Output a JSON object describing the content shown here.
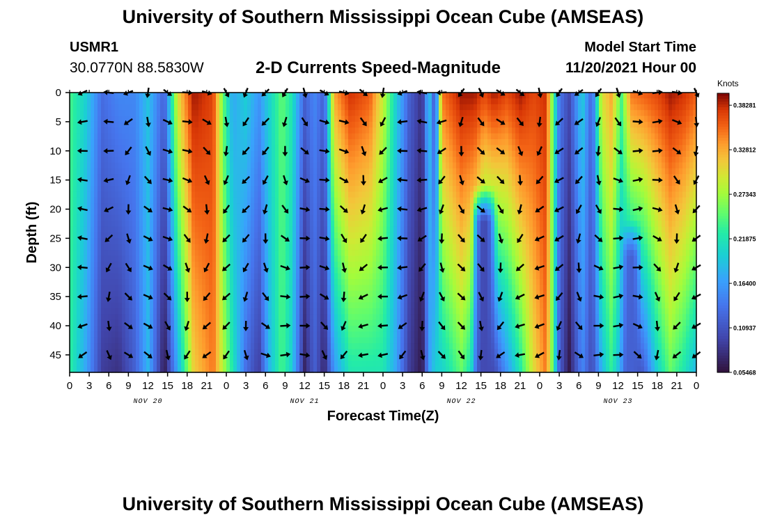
{
  "header": {
    "title": "University of Southern Mississippi Ocean Cube (AMSEAS)",
    "station_id": "USMR1",
    "station_coords": "30.0770N  88.5830W",
    "subtitle": "2-D Currents Speed-Magnitude",
    "model_start_label": "Model Start Time",
    "model_start_value": "11/20/2021 Hour 00"
  },
  "footer": {
    "repeated_title": "University of Southern Mississippi Ocean Cube (AMSEAS)"
  },
  "chart_data": {
    "type": "heatmap",
    "title": "2-D Currents Speed-Magnitude",
    "xlabel": "Forecast Time(Z)",
    "ylabel": "Depth (ft)",
    "x_hours": [
      0,
      96
    ],
    "ylim": [
      0,
      48
    ],
    "y_ticks": [
      0,
      5,
      10,
      15,
      20,
      25,
      30,
      35,
      40,
      45
    ],
    "x_tick_labels": [
      "0",
      "3",
      "6",
      "9",
      "12",
      "15",
      "18",
      "21",
      "0",
      "3",
      "6",
      "9",
      "12",
      "15",
      "18",
      "21",
      "0",
      "3",
      "6",
      "9",
      "12",
      "15",
      "18",
      "21",
      "0",
      "3",
      "6",
      "9",
      "12",
      "15",
      "18",
      "21",
      "0"
    ],
    "date_labels": [
      {
        "hour": 12,
        "label": "NOV 20"
      },
      {
        "hour": 36,
        "label": "NOV 21"
      },
      {
        "hour": 60,
        "label": "NOV 22"
      },
      {
        "hour": 84,
        "label": "NOV 23"
      }
    ],
    "colorbar": {
      "unit": "Knots",
      "ticks": [
        0.38281,
        0.32812,
        0.27343,
        0.21875,
        0.164,
        0.10937,
        0.05468
      ],
      "tick_labels": [
        "0.38281",
        "0.32812",
        "0.27343",
        "0.21875",
        "0.16400",
        "0.10937",
        "0.05468"
      ],
      "min": 0.05468,
      "max": 0.3975
    },
    "speed_profiles": [
      {
        "hour": 0,
        "surface": 0.24,
        "bottom": 0.23
      },
      {
        "hour": 2.5,
        "surface": 0.2,
        "bottom": 0.17
      },
      {
        "hour": 5,
        "surface": 0.13,
        "bottom": 0.09
      },
      {
        "hour": 7.5,
        "surface": 0.15,
        "bottom": 0.08
      },
      {
        "hour": 10,
        "surface": 0.15,
        "bottom": 0.12
      },
      {
        "hour": 12,
        "surface": 0.19,
        "bottom": 0.18
      },
      {
        "hour": 14.5,
        "surface": 0.12,
        "bottom": 0.06
      },
      {
        "hour": 16.5,
        "surface": 0.3,
        "bottom": 0.17
      },
      {
        "hour": 19,
        "surface": 0.39,
        "bottom": 0.31
      },
      {
        "hour": 22,
        "surface": 0.37,
        "bottom": 0.35
      },
      {
        "hour": 23.5,
        "surface": 0.25,
        "bottom": 0.28
      },
      {
        "hour": 25,
        "surface": 0.17,
        "bottom": 0.22
      },
      {
        "hour": 27,
        "surface": 0.2,
        "bottom": 0.13
      },
      {
        "hour": 29,
        "surface": 0.16,
        "bottom": 0.09
      },
      {
        "hour": 30.5,
        "surface": 0.2,
        "bottom": 0.18
      },
      {
        "hour": 32.5,
        "surface": 0.25,
        "bottom": 0.24
      },
      {
        "hour": 34,
        "surface": 0.22,
        "bottom": 0.2
      },
      {
        "hour": 36,
        "surface": 0.12,
        "bottom": 0.07
      },
      {
        "hour": 37.5,
        "surface": 0.15,
        "bottom": 0.12
      },
      {
        "hour": 39,
        "surface": 0.12,
        "bottom": 0.07
      },
      {
        "hour": 40.5,
        "surface": 0.33,
        "bottom": 0.16
      },
      {
        "hour": 43,
        "surface": 0.38,
        "bottom": 0.22
      },
      {
        "hour": 46,
        "surface": 0.36,
        "bottom": 0.22
      },
      {
        "hour": 48,
        "surface": 0.29,
        "bottom": 0.22
      },
      {
        "hour": 50,
        "surface": 0.2,
        "bottom": 0.17
      },
      {
        "hour": 52,
        "surface": 0.12,
        "bottom": 0.09
      },
      {
        "hour": 54,
        "surface": 0.08,
        "bottom": 0.06
      },
      {
        "hour": 55,
        "surface": 0.2,
        "bottom": 0.16
      },
      {
        "hour": 56,
        "surface": 0.1,
        "bottom": 0.2
      },
      {
        "hour": 57,
        "surface": 0.35,
        "bottom": 0.2
      },
      {
        "hour": 60,
        "surface": 0.39,
        "bottom": 0.25
      },
      {
        "hour": 62,
        "surface": 0.39,
        "bottom": 0.2
      },
      {
        "hour": 63.5,
        "surface": 0.37,
        "bottom": 0.12
      },
      {
        "hour": 65,
        "surface": 0.39,
        "bottom": 0.1
      },
      {
        "hour": 67,
        "surface": 0.37,
        "bottom": 0.16
      },
      {
        "hour": 69,
        "surface": 0.39,
        "bottom": 0.22
      },
      {
        "hour": 71,
        "surface": 0.37,
        "bottom": 0.3
      },
      {
        "hour": 73,
        "surface": 0.38,
        "bottom": 0.35
      },
      {
        "hour": 74,
        "surface": 0.25,
        "bottom": 0.25
      },
      {
        "hour": 75,
        "surface": 0.14,
        "bottom": 0.12
      },
      {
        "hour": 76.5,
        "surface": 0.1,
        "bottom": 0.06
      },
      {
        "hour": 78.5,
        "surface": 0.2,
        "bottom": 0.15
      },
      {
        "hour": 80,
        "surface": 0.12,
        "bottom": 0.1
      },
      {
        "hour": 81.5,
        "surface": 0.3,
        "bottom": 0.18
      },
      {
        "hour": 83,
        "surface": 0.33,
        "bottom": 0.23
      },
      {
        "hour": 84.5,
        "surface": 0.24,
        "bottom": 0.17
      },
      {
        "hour": 86,
        "surface": 0.35,
        "bottom": 0.09
      },
      {
        "hour": 88,
        "surface": 0.36,
        "bottom": 0.12
      },
      {
        "hour": 90,
        "surface": 0.37,
        "bottom": 0.2
      },
      {
        "hour": 92,
        "surface": 0.39,
        "bottom": 0.25
      },
      {
        "hour": 94,
        "surface": 0.38,
        "bottom": 0.22
      },
      {
        "hour": 96,
        "surface": 0.36,
        "bottom": 0.18
      }
    ],
    "features": [
      {
        "hour": 63.5,
        "bottom_depth": 16,
        "top_depth": 46,
        "speed": 0.1,
        "width_hours": 2
      },
      {
        "hour": 86,
        "bottom_depth": 22,
        "top_depth": 46,
        "speed": 0.12,
        "width_hours": 1.6
      }
    ],
    "arrow_depths": [
      0,
      5,
      10,
      15,
      20,
      25,
      30,
      35,
      40,
      45
    ],
    "arrow_hours": [
      2,
      6,
      9,
      12,
      15,
      18,
      21,
      24,
      27,
      30,
      33,
      36,
      39,
      42,
      45,
      48,
      51,
      54,
      57,
      60,
      63,
      66,
      69,
      72,
      75,
      78,
      81,
      84,
      87,
      90,
      93,
      96
    ]
  }
}
